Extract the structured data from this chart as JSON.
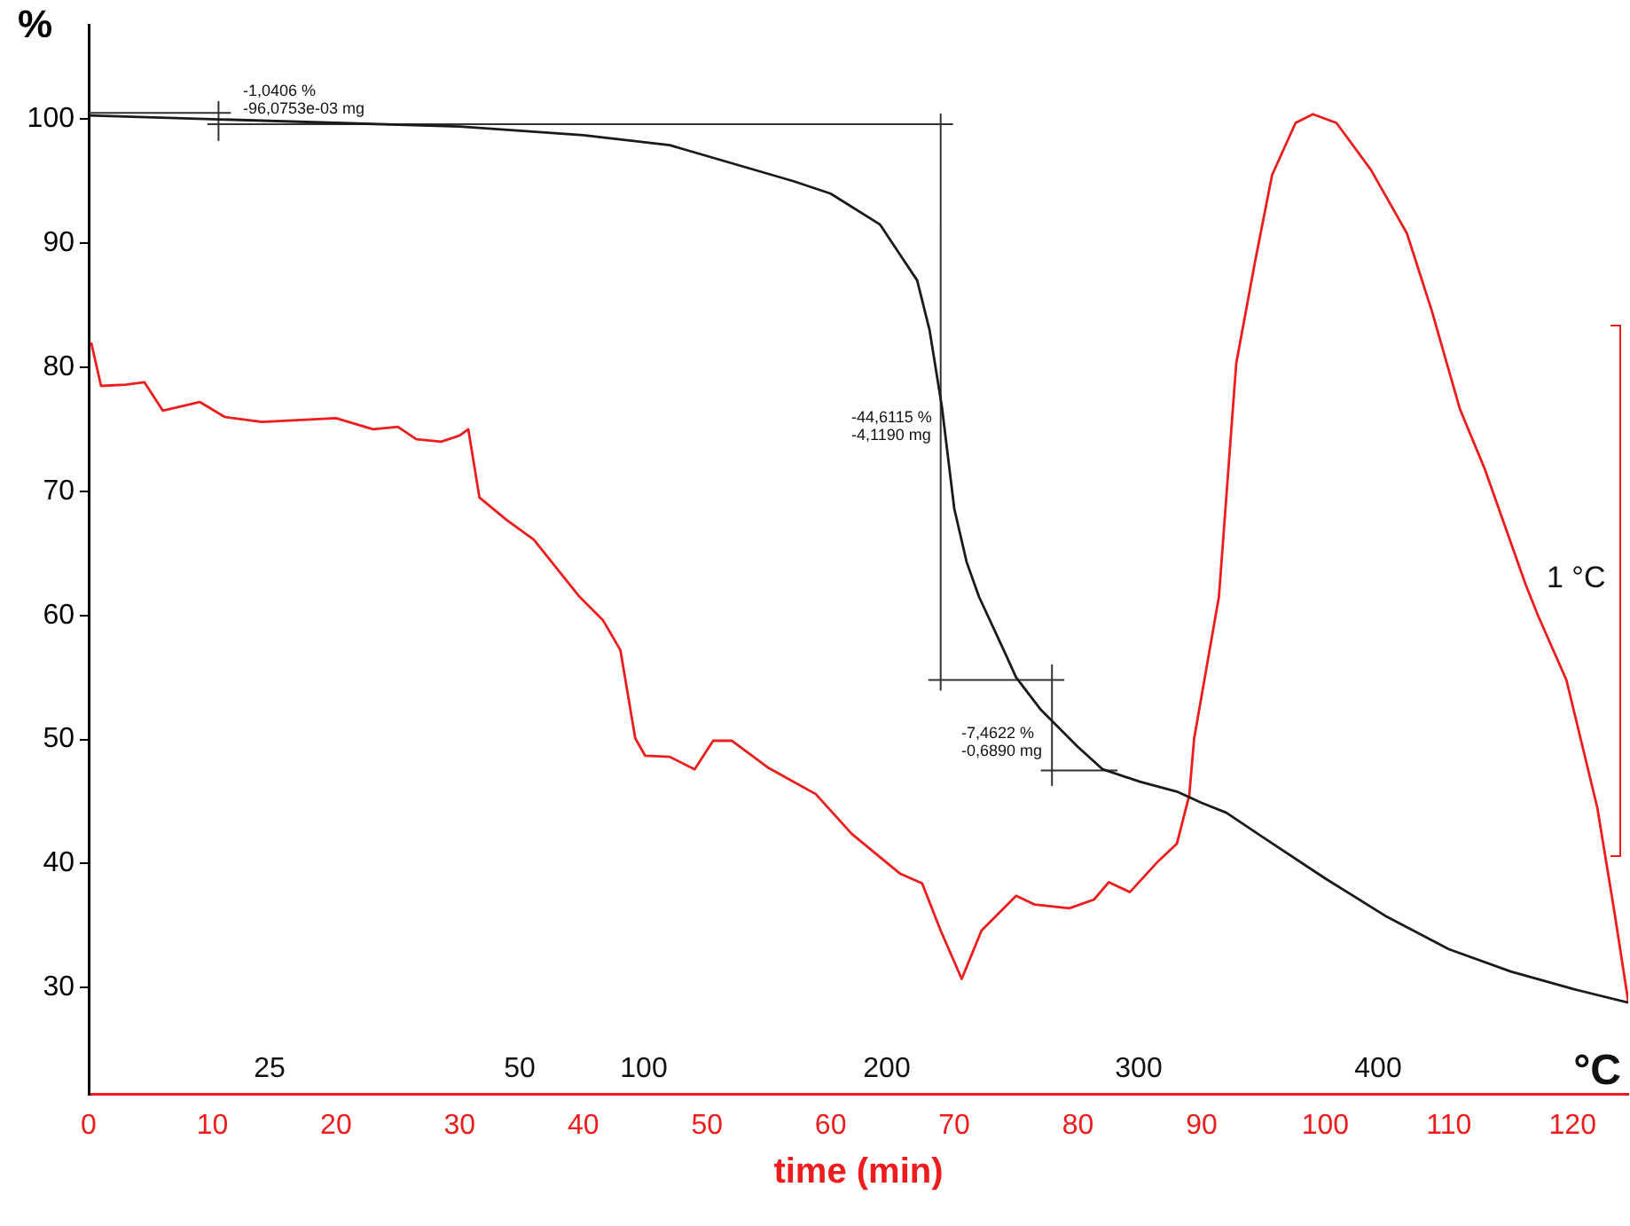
{
  "chart_data": {
    "type": "line",
    "xlabel": "time (min)",
    "ylabel": "%",
    "xlim": [
      0,
      124.5
    ],
    "xticks": [
      0,
      10,
      20,
      30,
      40,
      50,
      60,
      70,
      80,
      90,
      100,
      110,
      120
    ],
    "ylim": [
      21.4,
      107.6
    ],
    "yticks": [
      30,
      40,
      50,
      60,
      70,
      80,
      90,
      100
    ],
    "grid": false,
    "legend": false,
    "marker": "none",
    "line_style": "solid",
    "series": [
      {
        "color": "#1a1a1a",
        "x": [
          0,
          10,
          20,
          30,
          40,
          47,
          57,
          60,
          64,
          67,
          68,
          69,
          70,
          71,
          72,
          74,
          75,
          77,
          80,
          82,
          85,
          88,
          90,
          92,
          95,
          100,
          105,
          110,
          115,
          120,
          124.5
        ],
        "values": [
          100.3,
          100.0,
          99.7,
          99.4,
          98.7,
          97.9,
          95.0,
          94.0,
          91.5,
          87.0,
          83.0,
          76.8,
          68.6,
          64.3,
          61.5,
          57.2,
          55.0,
          52.4,
          49.4,
          47.6,
          46.6,
          45.8,
          44.9,
          44.1,
          42.1,
          38.8,
          35.7,
          33.1,
          31.3,
          29.9,
          28.8
        ]
      },
      {
        "color": "#ee1c1c",
        "x": [
          0.2,
          1,
          3,
          4.5,
          6,
          9,
          11,
          14,
          20,
          23,
          25,
          26.5,
          28.5,
          30,
          30.7,
          31.6,
          33.8,
          36,
          39.7,
          41.6,
          43,
          44.2,
          45,
          47,
          49,
          50.5,
          52,
          55,
          57,
          58.8,
          61.7,
          65.6,
          67.4,
          68.9,
          70.6,
          72.2,
          75,
          76.5,
          79.3,
          81.3,
          82.5,
          84.2,
          86.5,
          88,
          89,
          89.4,
          91.4,
          92.8,
          94.3,
          95.7,
          97.6,
          99,
          100.9,
          103.7,
          106.6,
          108.6,
          110.9,
          112.9,
          116.2,
          117.2,
          119.5,
          122,
          123.4,
          124.5
        ],
        "values": [
          82,
          78.5,
          78.6,
          78.8,
          76.5,
          77.2,
          76.0,
          75.6,
          75.9,
          75.0,
          75.2,
          74.2,
          74.0,
          74.5,
          75.0,
          69.5,
          67.7,
          66.1,
          61.5,
          59.6,
          57.2,
          50.1,
          48.7,
          48.6,
          47.6,
          49.9,
          49.9,
          47.7,
          46.6,
          45.6,
          42.4,
          39.2,
          38.4,
          34.6,
          30.7,
          34.6,
          37.4,
          36.7,
          36.4,
          37.1,
          38.5,
          37.7,
          40.2,
          41.6,
          45.5,
          50.1,
          61.5,
          80.3,
          88.4,
          95.5,
          99.7,
          100.4,
          99.7,
          95.9,
          90.8,
          84.6,
          76.6,
          71.8,
          62.5,
          60.0,
          54.8,
          44.5,
          36.0,
          28.9
        ]
      },
      {
        "color": "#333333",
        "x": [
          0,
          11.5
        ],
        "values": [
          100.5,
          100.5
        ]
      },
      {
        "color": "#333333",
        "x": [
          9.6,
          69.9
        ],
        "values": [
          99.6,
          99.6
        ]
      },
      {
        "color": "#333333",
        "x": [
          10.5,
          10.5
        ],
        "values": [
          101.4,
          98.3
        ]
      },
      {
        "color": "#333333",
        "x": [
          68.9,
          68.9
        ],
        "values": [
          100.4,
          54.0
        ]
      },
      {
        "color": "#333333",
        "x": [
          67.9,
          78.9
        ],
        "values": [
          54.8,
          54.8
        ]
      },
      {
        "color": "#333333",
        "x": [
          77.9,
          77.9
        ],
        "values": [
          56.0,
          46.3
        ]
      },
      {
        "color": "#333333",
        "x": [
          77.0,
          83.2
        ],
        "values": [
          47.5,
          47.5
        ]
      }
    ],
    "annotations": [
      "-1,0406 %\n-96,0753e-03 mg",
      "-44,6115 %\n-4,1190 mg",
      "-7,4622 %\n-0,6890 mg",
      "25",
      "50",
      "100",
      "200",
      "300",
      "400",
      "°C",
      "1 °C"
    ]
  }
}
